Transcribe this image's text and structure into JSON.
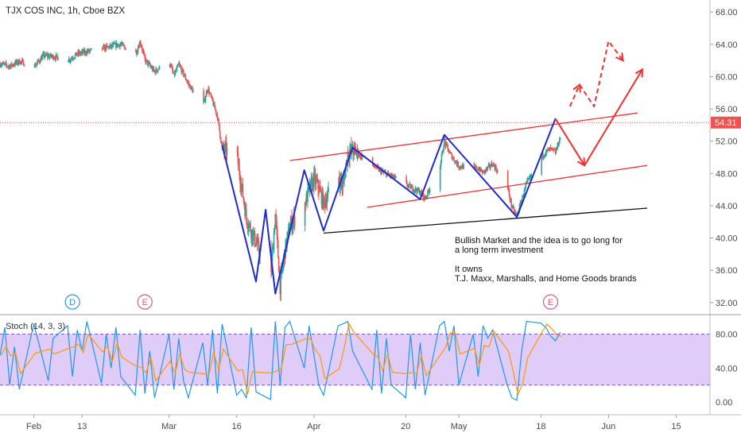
{
  "chart_data": {
    "type": "candlestick",
    "title": "TJX COS INC, 1h, Cboe BZX",
    "price_axis": {
      "ticks": [
        "68.00",
        "64.00",
        "60.00",
        "56.00",
        "52.00",
        "48.00",
        "44.00",
        "40.00",
        "36.00",
        "32.00"
      ],
      "tick_values": [
        68,
        64,
        60,
        56,
        52,
        48,
        44,
        40,
        36,
        32
      ],
      "ylim": [
        30.5,
        69.5
      ],
      "last_price_label": "54.31",
      "last_price": 54.31
    },
    "time_axis": {
      "ticks": [
        "Feb",
        "13",
        "Mar",
        "16",
        "Apr",
        "20",
        "May",
        "18",
        "Jun",
        "15"
      ],
      "xlim": [
        "2020-01-27",
        "2020-06-22"
      ]
    },
    "price_path": [
      [
        "2020-01-27",
        61.6
      ],
      [
        "2020-01-29",
        61.3
      ],
      [
        "2020-01-31",
        61.9
      ],
      [
        "2020-02-03",
        61.2
      ],
      [
        "2020-02-05",
        62.6
      ],
      [
        "2020-02-07",
        62.5
      ],
      [
        "2020-02-10",
        62.0
      ],
      [
        "2020-02-12",
        62.8
      ],
      [
        "2020-02-14",
        63.1
      ],
      [
        "2020-02-18",
        63.6
      ],
      [
        "2020-02-20",
        63.9
      ],
      [
        "2020-02-21",
        64.0
      ],
      [
        "2020-02-24",
        62.6
      ],
      [
        "2020-02-25",
        64.4
      ],
      [
        "2020-02-26",
        62.1
      ],
      [
        "2020-02-28",
        60.6
      ],
      [
        "2020-03-02",
        62.0
      ],
      [
        "2020-03-03",
        60.1
      ],
      [
        "2020-03-04",
        61.5
      ],
      [
        "2020-03-06",
        59.1
      ],
      [
        "2020-03-09",
        56.3
      ],
      [
        "2020-03-10",
        58.6
      ],
      [
        "2020-03-11",
        56.9
      ],
      [
        "2020-03-12",
        55.1
      ],
      [
        "2020-03-13",
        51.0
      ],
      [
        "2020-03-16",
        50.4
      ],
      [
        "2020-03-18",
        42.5
      ],
      [
        "2020-03-20",
        39.4
      ],
      [
        "2020-03-23",
        35.0
      ],
      [
        "2020-03-24",
        42.9
      ],
      [
        "2020-03-25",
        34.0
      ],
      [
        "2020-03-26",
        38.4
      ],
      [
        "2020-03-27",
        41.5
      ],
      [
        "2020-03-30",
        44.0
      ],
      [
        "2020-03-31",
        45.9
      ],
      [
        "2020-04-01",
        47.3
      ],
      [
        "2020-04-02",
        46.2
      ],
      [
        "2020-04-03",
        44.3
      ],
      [
        "2020-04-06",
        47.7
      ],
      [
        "2020-04-07",
        46.4
      ],
      [
        "2020-04-08",
        50.5
      ],
      [
        "2020-04-09",
        50.9
      ],
      [
        "2020-04-13",
        49.1
      ],
      [
        "2020-04-15",
        48.2
      ],
      [
        "2020-04-17",
        47.7
      ],
      [
        "2020-04-21",
        46.3
      ],
      [
        "2020-04-23",
        45.7
      ],
      [
        "2020-04-24",
        44.9
      ],
      [
        "2020-04-27",
        48.6
      ],
      [
        "2020-04-28",
        52.0
      ],
      [
        "2020-04-29",
        50.6
      ],
      [
        "2020-05-01",
        48.9
      ],
      [
        "2020-05-05",
        48.6
      ],
      [
        "2020-05-06",
        48.1
      ],
      [
        "2020-05-08",
        49.2
      ],
      [
        "2020-05-11",
        46.4
      ],
      [
        "2020-05-12",
        43.8
      ],
      [
        "2020-05-13",
        42.7
      ],
      [
        "2020-05-15",
        46.7
      ],
      [
        "2020-05-18",
        49.9
      ],
      [
        "2020-05-19",
        50.7
      ],
      [
        "2020-05-20",
        51.0
      ],
      [
        "2020-05-21",
        50.6
      ],
      [
        "2020-05-22",
        52.5
      ],
      [
        "2020-05-22",
        54.3
      ]
    ],
    "stochastic": {
      "label": "Stoch (14, 3, 3)",
      "ticks": [
        "80.00",
        "40.00",
        "0.00"
      ],
      "tick_values": [
        80,
        40,
        0
      ],
      "upper_band": 80,
      "lower_band": 20,
      "ylim": [
        -15,
        103
      ],
      "pct_k": [
        [
          "2020-01-27",
          55
        ],
        [
          "2020-01-28",
          88
        ],
        [
          "2020-01-29",
          20
        ],
        [
          "2020-01-30",
          65
        ],
        [
          "2020-01-31",
          15
        ],
        [
          "2020-02-03",
          92
        ],
        [
          "2020-02-04",
          70
        ],
        [
          "2020-02-06",
          25
        ],
        [
          "2020-02-07",
          75
        ],
        [
          "2020-02-10",
          90
        ],
        [
          "2020-02-11",
          30
        ],
        [
          "2020-02-12",
          85
        ],
        [
          "2020-02-13",
          60
        ],
        [
          "2020-02-14",
          95
        ],
        [
          "2020-02-17",
          22
        ],
        [
          "2020-02-18",
          80
        ],
        [
          "2020-02-19",
          40
        ],
        [
          "2020-02-20",
          88
        ],
        [
          "2020-02-21",
          30
        ],
        [
          "2020-02-24",
          8
        ],
        [
          "2020-02-25",
          85
        ],
        [
          "2020-02-26",
          10
        ],
        [
          "2020-02-27",
          60
        ],
        [
          "2020-02-28",
          5
        ],
        [
          "2020-03-02",
          80
        ],
        [
          "2020-03-03",
          15
        ],
        [
          "2020-03-04",
          75
        ],
        [
          "2020-03-05",
          25
        ],
        [
          "2020-03-06",
          5
        ],
        [
          "2020-03-09",
          70
        ],
        [
          "2020-03-10",
          20
        ],
        [
          "2020-03-11",
          85
        ],
        [
          "2020-03-12",
          10
        ],
        [
          "2020-03-13",
          92
        ],
        [
          "2020-03-16",
          8
        ],
        [
          "2020-03-17",
          15
        ],
        [
          "2020-03-18",
          5
        ],
        [
          "2020-03-19",
          88
        ],
        [
          "2020-03-20",
          12
        ],
        [
          "2020-03-23",
          3
        ],
        [
          "2020-03-24",
          95
        ],
        [
          "2020-03-25",
          20
        ],
        [
          "2020-03-26",
          88
        ],
        [
          "2020-03-27",
          95
        ],
        [
          "2020-03-30",
          40
        ],
        [
          "2020-03-31",
          90
        ],
        [
          "2020-04-01",
          55
        ],
        [
          "2020-04-02",
          20
        ],
        [
          "2020-04-03",
          8
        ],
        [
          "2020-04-06",
          90
        ],
        [
          "2020-04-07",
          92
        ],
        [
          "2020-04-08",
          95
        ],
        [
          "2020-04-09",
          60
        ],
        [
          "2020-04-13",
          15
        ],
        [
          "2020-04-14",
          85
        ],
        [
          "2020-04-15",
          10
        ],
        [
          "2020-04-16",
          75
        ],
        [
          "2020-04-17",
          20
        ],
        [
          "2020-04-20",
          5
        ],
        [
          "2020-04-21",
          80
        ],
        [
          "2020-04-22",
          15
        ],
        [
          "2020-04-23",
          70
        ],
        [
          "2020-04-24",
          8
        ],
        [
          "2020-04-27",
          90
        ],
        [
          "2020-04-28",
          95
        ],
        [
          "2020-04-29",
          60
        ],
        [
          "2020-04-30",
          90
        ],
        [
          "2020-05-01",
          20
        ],
        [
          "2020-05-04",
          80
        ],
        [
          "2020-05-05",
          30
        ],
        [
          "2020-05-06",
          90
        ],
        [
          "2020-05-07",
          75
        ],
        [
          "2020-05-08",
          85
        ],
        [
          "2020-05-11",
          20
        ],
        [
          "2020-05-12",
          5
        ],
        [
          "2020-05-13",
          2
        ],
        [
          "2020-05-14",
          60
        ],
        [
          "2020-05-15",
          95
        ],
        [
          "2020-05-18",
          93
        ],
        [
          "2020-05-19",
          88
        ],
        [
          "2020-05-20",
          78
        ],
        [
          "2020-05-21",
          72
        ],
        [
          "2020-05-22",
          82
        ]
      ]
    },
    "drawings": {
      "zigzag_color": "#1e2bd0",
      "channel_color": "#f23030",
      "support_color": "#111111",
      "arrow_color": "#f23030",
      "price_line_color": "#ef5350",
      "stoch_band_fill": "#d9c3f7",
      "stoch_k_color": "#2196f3",
      "stoch_d_color": "#ff9800",
      "candle_up_color": "#26a69a",
      "candle_down_color": "#ef5350",
      "zigzag": [
        [
          "2020-03-13",
          51.5
        ],
        [
          "2020-03-20",
          34.6
        ],
        [
          "2020-03-22",
          43.5
        ],
        [
          "2020-03-24",
          33.1
        ],
        [
          "2020-03-30",
          48.4
        ],
        [
          "2020-04-03",
          40.9
        ],
        [
          "2020-04-09",
          51.2
        ],
        [
          "2020-04-23",
          44.8
        ],
        [
          "2020-04-28",
          52.8
        ],
        [
          "2020-05-13",
          42.6
        ],
        [
          "2020-05-21",
          54.8
        ]
      ],
      "channel_upper": [
        [
          "2020-03-27",
          49.6
        ],
        [
          "2020-06-07",
          55.5
        ]
      ],
      "channel_lower": [
        [
          "2020-04-12",
          43.8
        ],
        [
          "2020-06-09",
          49.0
        ]
      ],
      "support_line": [
        [
          "2020-04-03",
          40.6
        ],
        [
          "2020-06-09",
          43.7
        ]
      ],
      "projection_solid": [
        [
          "2020-05-21",
          54.8
        ],
        [
          "2020-05-27",
          49.0
        ],
        [
          "2020-06-08",
          60.9
        ]
      ],
      "projection_dashed": [
        [
          "2020-05-24",
          56.3
        ],
        [
          "2020-05-26",
          59.0
        ],
        [
          "2020-05-29",
          56.3
        ],
        [
          "2020-06-01",
          64.4
        ],
        [
          "2020-06-04",
          62.0
        ]
      ],
      "event_markers": [
        {
          "label": "D",
          "date": "2020-02-11",
          "color": "#2196f3"
        },
        {
          "label": "E",
          "date": "2020-02-26",
          "color": "#e0557a"
        },
        {
          "label": "E",
          "date": "2020-05-20",
          "color": "#e0557a"
        }
      ]
    },
    "annotation_lines": [
      "Bullish Market and the idea is to go long for",
      "a long term investment",
      "",
      "It owns",
      "T.J. Maxx, Marshalls, and Home Goods brands"
    ]
  }
}
